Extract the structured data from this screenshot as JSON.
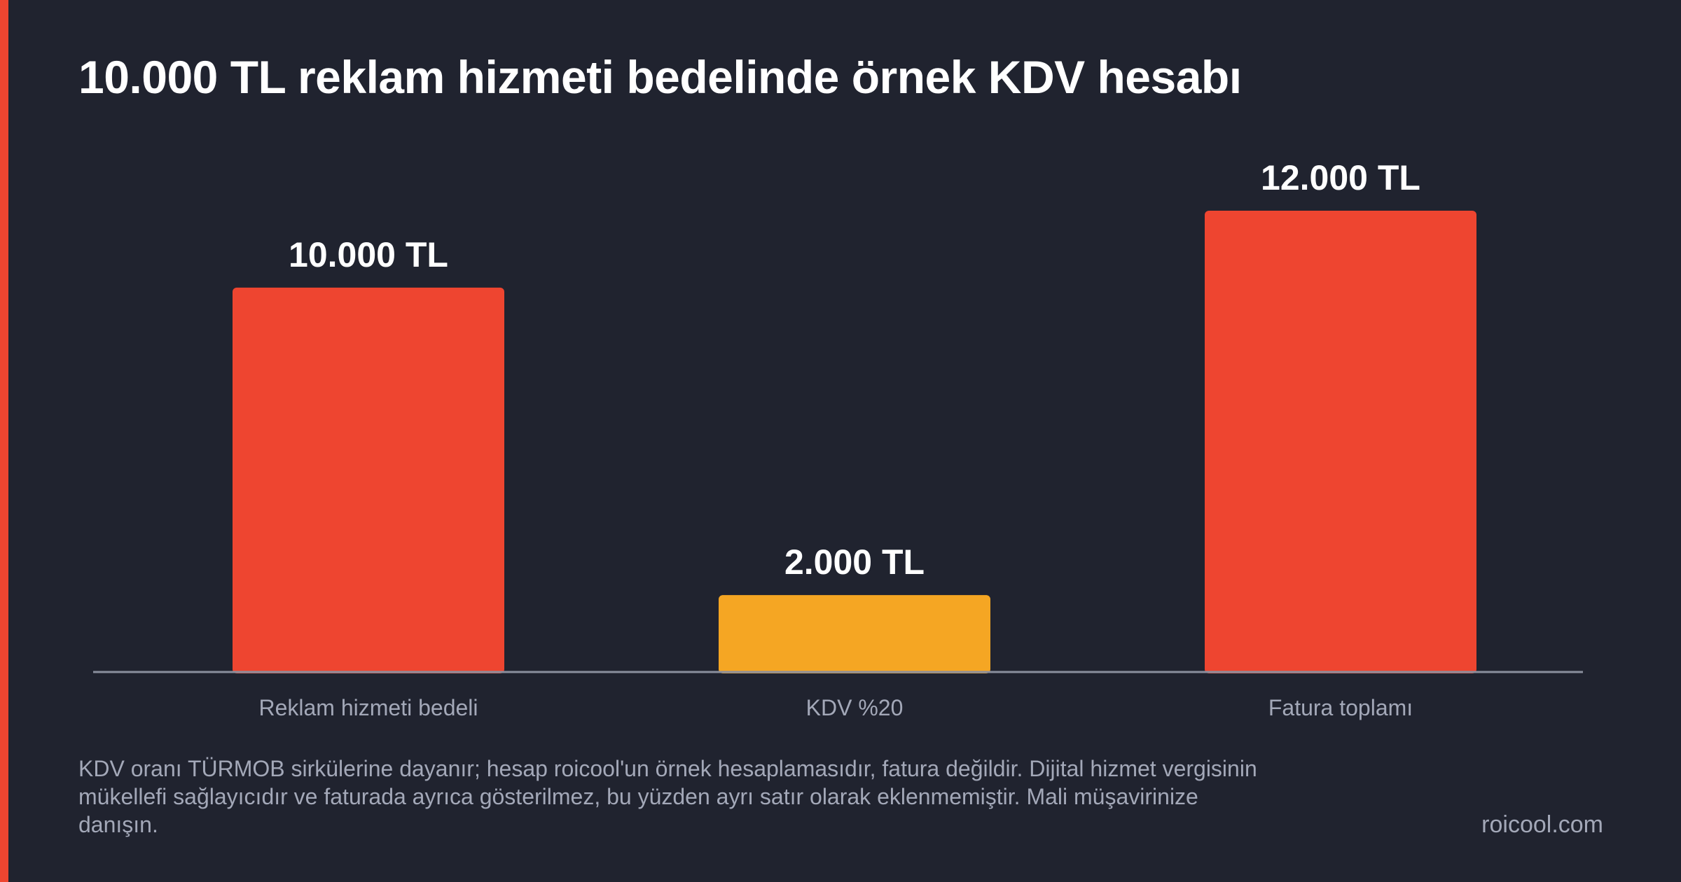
{
  "colors": {
    "background": "#20232f",
    "accent": "#ee4530",
    "highlight": "#f5a623",
    "axis": "#8a8f9e",
    "label_text": "#a3a8b8",
    "title_text": "#ffffff"
  },
  "chart_data": {
    "type": "bar",
    "title": "10.000 TL reklam hizmeti bedelinde örnek KDV hesabı",
    "categories": [
      "Reklam hizmeti bedeli",
      "KDV %20",
      "Fatura toplamı"
    ],
    "values": [
      10000,
      2000,
      12000
    ],
    "value_labels": [
      "10.000 TL",
      "2.000 TL",
      "12.000 TL"
    ],
    "bar_colors": [
      "#ee4530",
      "#f5a623",
      "#ee4530"
    ],
    "xlabel": "",
    "ylabel": "",
    "ylim": [
      0,
      12000
    ],
    "grid": false,
    "legend": "none"
  },
  "footnote": "KDV oranı TÜRMOB sirkülerine dayanır; hesap roicool'un örnek hesaplamasıdır, fatura değildir. Dijital hizmet vergisinin mükellefi sağlayıcıdır ve faturada ayrıca gösterilmez, bu yüzden ayrı satır olarak eklenmemiştir. Mali müşavirinize danışın.",
  "brand": "roicool.com"
}
